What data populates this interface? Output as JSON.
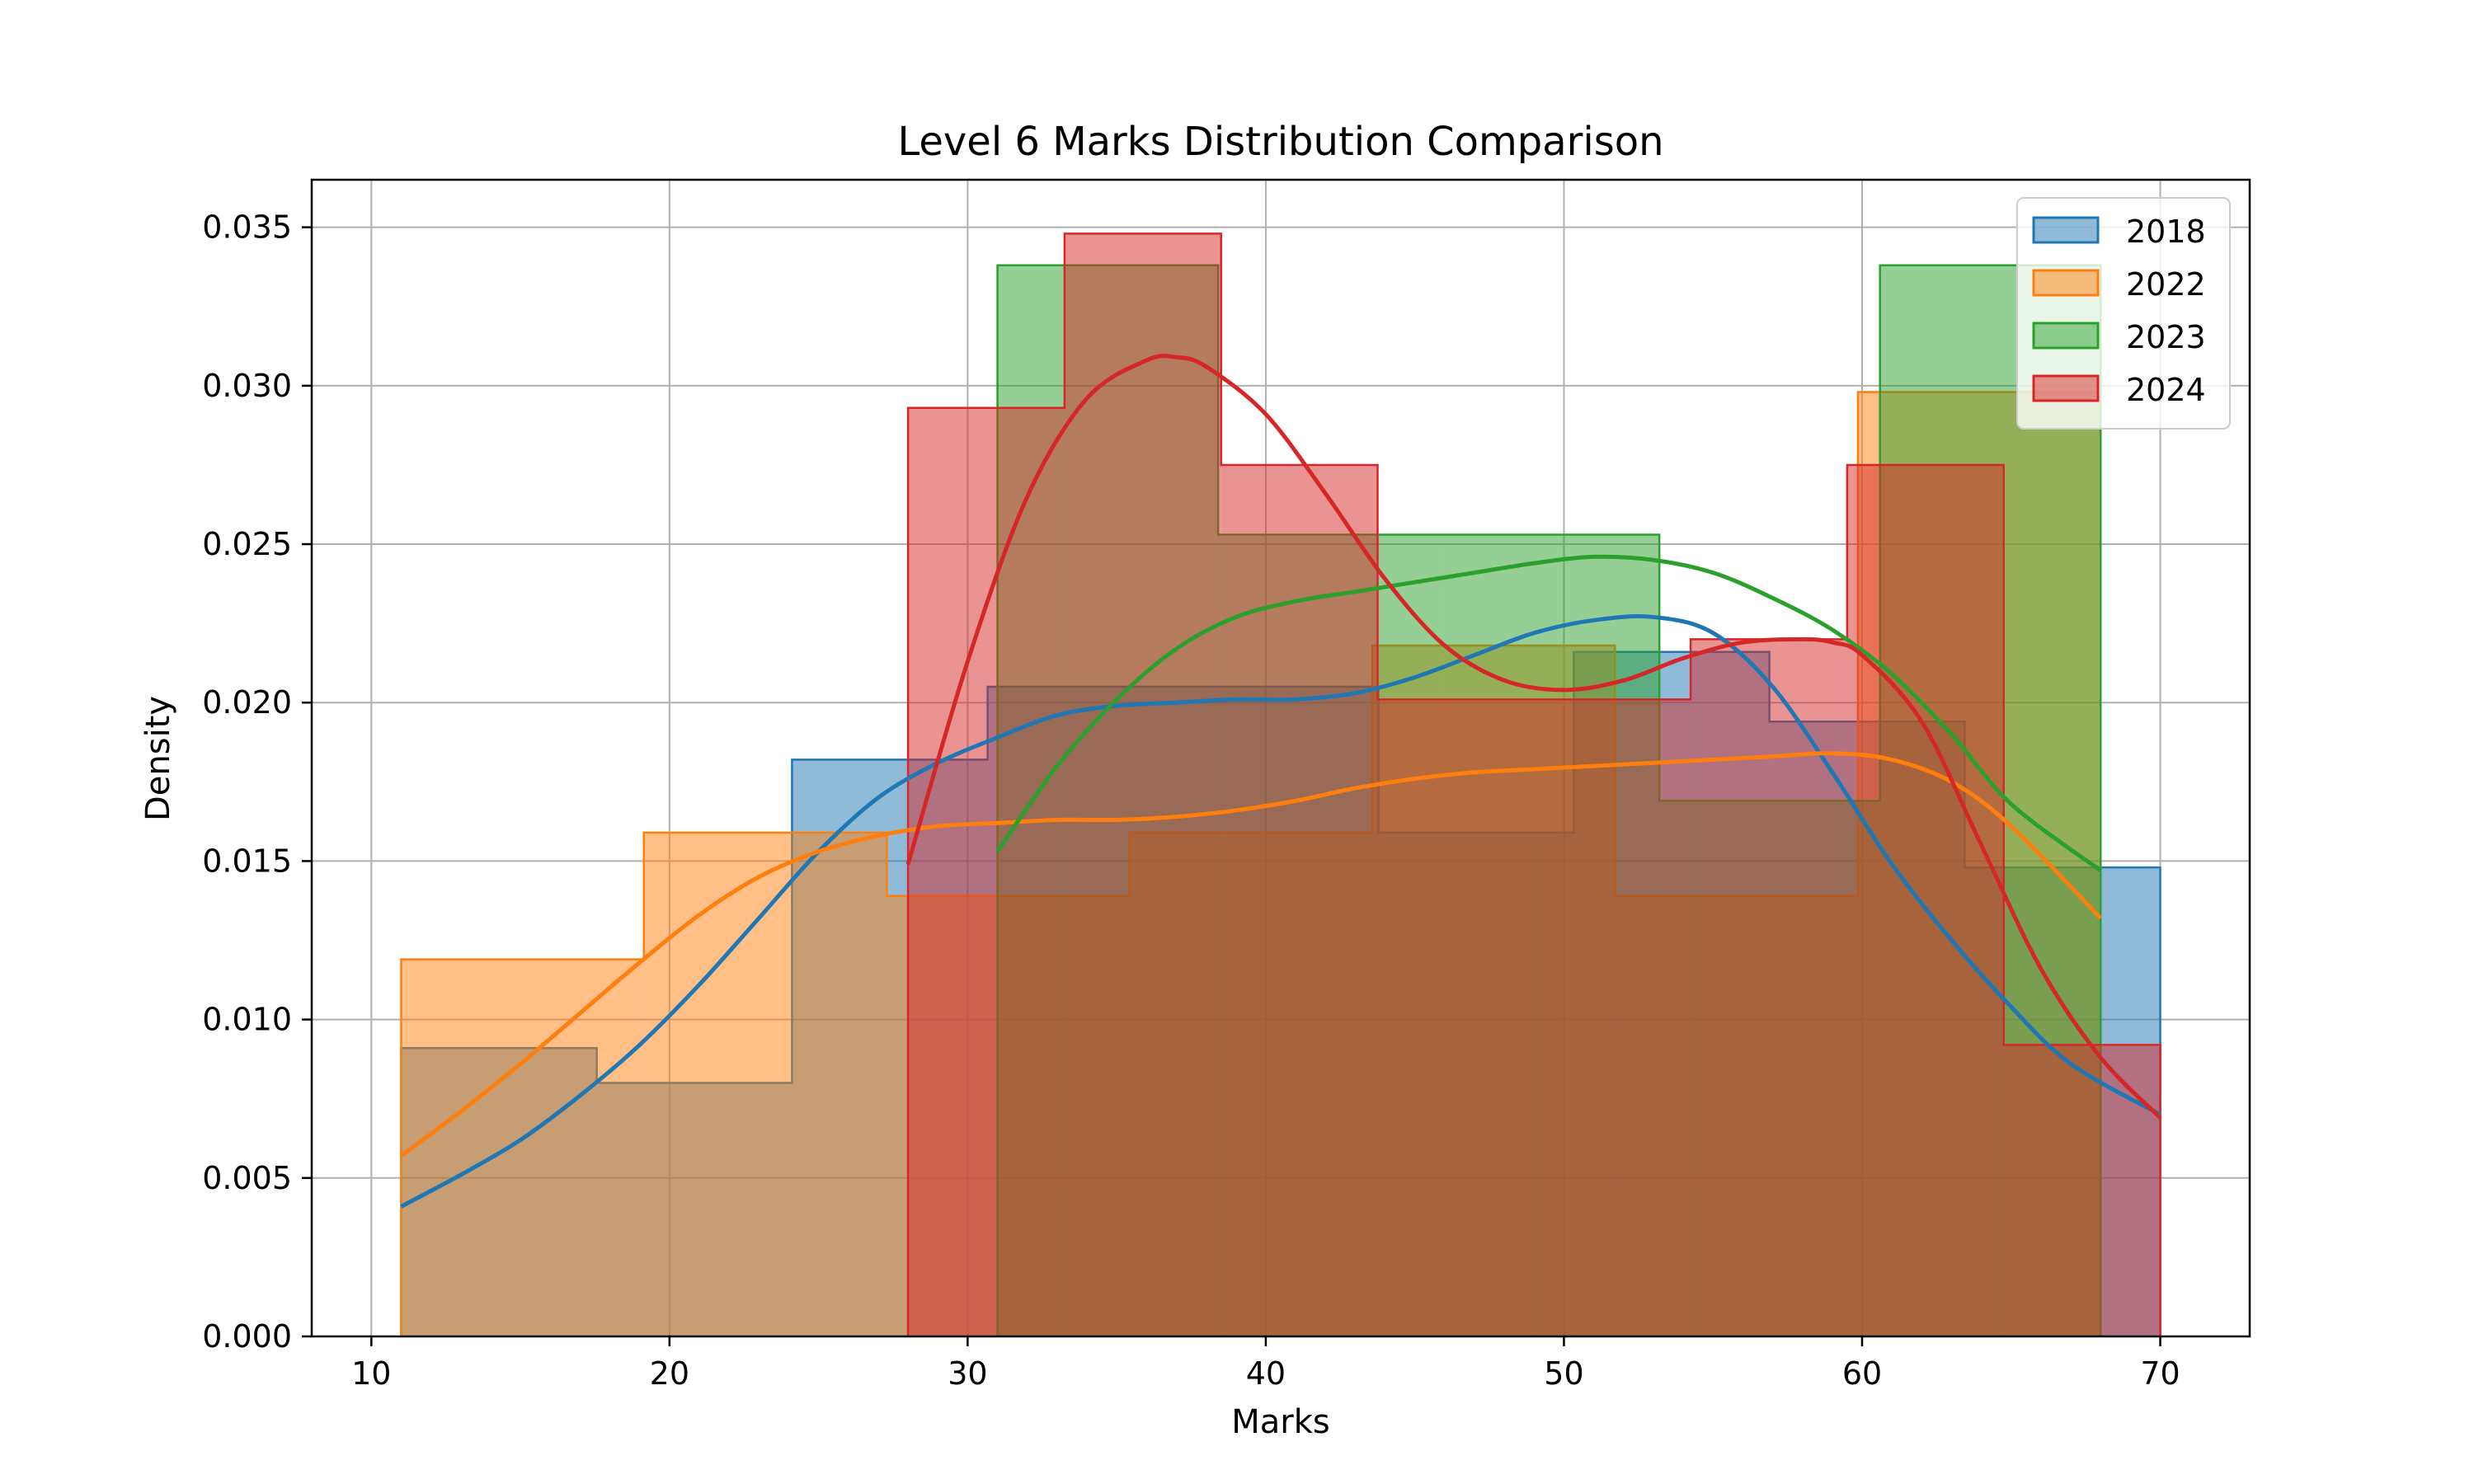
{
  "chart_data": {
    "type": "histogram",
    "title": "Level 6 Marks Distribution Comparison",
    "xlabel": "Marks",
    "ylabel": "Density",
    "xlim": [
      8,
      73
    ],
    "ylim": [
      0,
      0.0365
    ],
    "xticks": [
      10,
      20,
      30,
      40,
      50,
      60,
      70
    ],
    "yticks": [
      0,
      0.005,
      0.01,
      0.015,
      0.02,
      0.025,
      0.03,
      0.035
    ],
    "ytick_labels": [
      "0.000",
      "0.005",
      "0.010",
      "0.015",
      "0.020",
      "0.025",
      "0.030",
      "0.035"
    ],
    "grid": true,
    "legend_position": "top-right",
    "series": [
      {
        "name": "2018",
        "color": "#1f77b4",
        "bin_edges": [
          11,
          17.56,
          24.11,
          30.67,
          37.22,
          43.78,
          50.33,
          56.89,
          63.44,
          70
        ],
        "density": [
          0.0091,
          0.008,
          0.0182,
          0.0205,
          0.0205,
          0.0159,
          0.0216,
          0.0194,
          0.0148
        ],
        "kde_x": [
          11,
          13,
          15,
          17,
          19,
          21,
          23,
          25,
          27,
          29,
          31,
          33,
          35,
          37,
          39,
          41,
          43,
          45,
          47,
          49,
          51,
          53,
          55,
          57,
          59,
          61,
          63,
          65,
          67,
          70
        ],
        "kde_y": [
          0.0041,
          0.0051,
          0.0062,
          0.0076,
          0.0092,
          0.0111,
          0.0132,
          0.0153,
          0.017,
          0.0181,
          0.0189,
          0.0196,
          0.0199,
          0.02,
          0.0201,
          0.0201,
          0.0203,
          0.0208,
          0.0215,
          0.0222,
          0.0226,
          0.0227,
          0.0222,
          0.0205,
          0.0178,
          0.0149,
          0.0125,
          0.0104,
          0.0086,
          0.007
        ]
      },
      {
        "name": "2022",
        "color": "#ff7f0e",
        "bin_edges": [
          11,
          19.14,
          27.29,
          35.43,
          43.57,
          51.71,
          59.86,
          68
        ],
        "density": [
          0.0119,
          0.0159,
          0.0139,
          0.0159,
          0.0218,
          0.0139,
          0.0298
        ],
        "kde_x": [
          11,
          13,
          15,
          17,
          19,
          21,
          23,
          25,
          27,
          29,
          31,
          33,
          35,
          37,
          39,
          41,
          43,
          45,
          47,
          49,
          51,
          53,
          55,
          57,
          59,
          61,
          63,
          65,
          68
        ],
        "kde_y": [
          0.0057,
          0.0071,
          0.0086,
          0.0102,
          0.0118,
          0.0133,
          0.0145,
          0.0153,
          0.0158,
          0.0161,
          0.0162,
          0.0163,
          0.0163,
          0.0164,
          0.0166,
          0.0169,
          0.0173,
          0.0176,
          0.0178,
          0.0179,
          0.018,
          0.0181,
          0.0182,
          0.0183,
          0.0184,
          0.0182,
          0.0175,
          0.0161,
          0.0132
        ]
      },
      {
        "name": "2023",
        "color": "#2ca02c",
        "bin_edges": [
          31,
          38.4,
          45.8,
          53.2,
          60.6,
          68
        ],
        "density": [
          0.0338,
          0.0253,
          0.0253,
          0.0169,
          0.0338
        ],
        "kde_x": [
          31,
          33,
          35,
          37,
          39,
          41,
          43,
          45,
          47,
          49,
          51,
          53,
          55,
          57,
          59,
          61,
          63,
          65,
          68
        ],
        "kde_y": [
          0.0153,
          0.018,
          0.0201,
          0.0217,
          0.0227,
          0.0232,
          0.0235,
          0.0238,
          0.0241,
          0.0244,
          0.0246,
          0.0245,
          0.0241,
          0.0233,
          0.0223,
          0.0209,
          0.019,
          0.0168,
          0.0147
        ]
      },
      {
        "name": "2024",
        "color": "#d62728",
        "bin_edges": [
          28,
          33.25,
          38.5,
          43.75,
          49,
          54.25,
          59.5,
          64.75,
          70
        ],
        "density": [
          0.0293,
          0.0348,
          0.0275,
          0.0201,
          0.0201,
          0.022,
          0.0275,
          0.0092
        ],
        "kde_x": [
          28,
          30,
          32,
          34,
          36,
          37,
          38,
          40,
          42,
          44,
          46,
          48,
          50,
          52,
          54,
          56,
          58,
          59,
          60,
          62,
          64,
          66,
          68,
          70
        ],
        "kde_y": [
          0.0149,
          0.0213,
          0.0265,
          0.0296,
          0.0308,
          0.0309,
          0.0306,
          0.0291,
          0.0266,
          0.0239,
          0.0218,
          0.0207,
          0.0204,
          0.0207,
          0.0214,
          0.0219,
          0.022,
          0.0219,
          0.0215,
          0.0194,
          0.0155,
          0.0116,
          0.0088,
          0.0069
        ]
      }
    ]
  }
}
